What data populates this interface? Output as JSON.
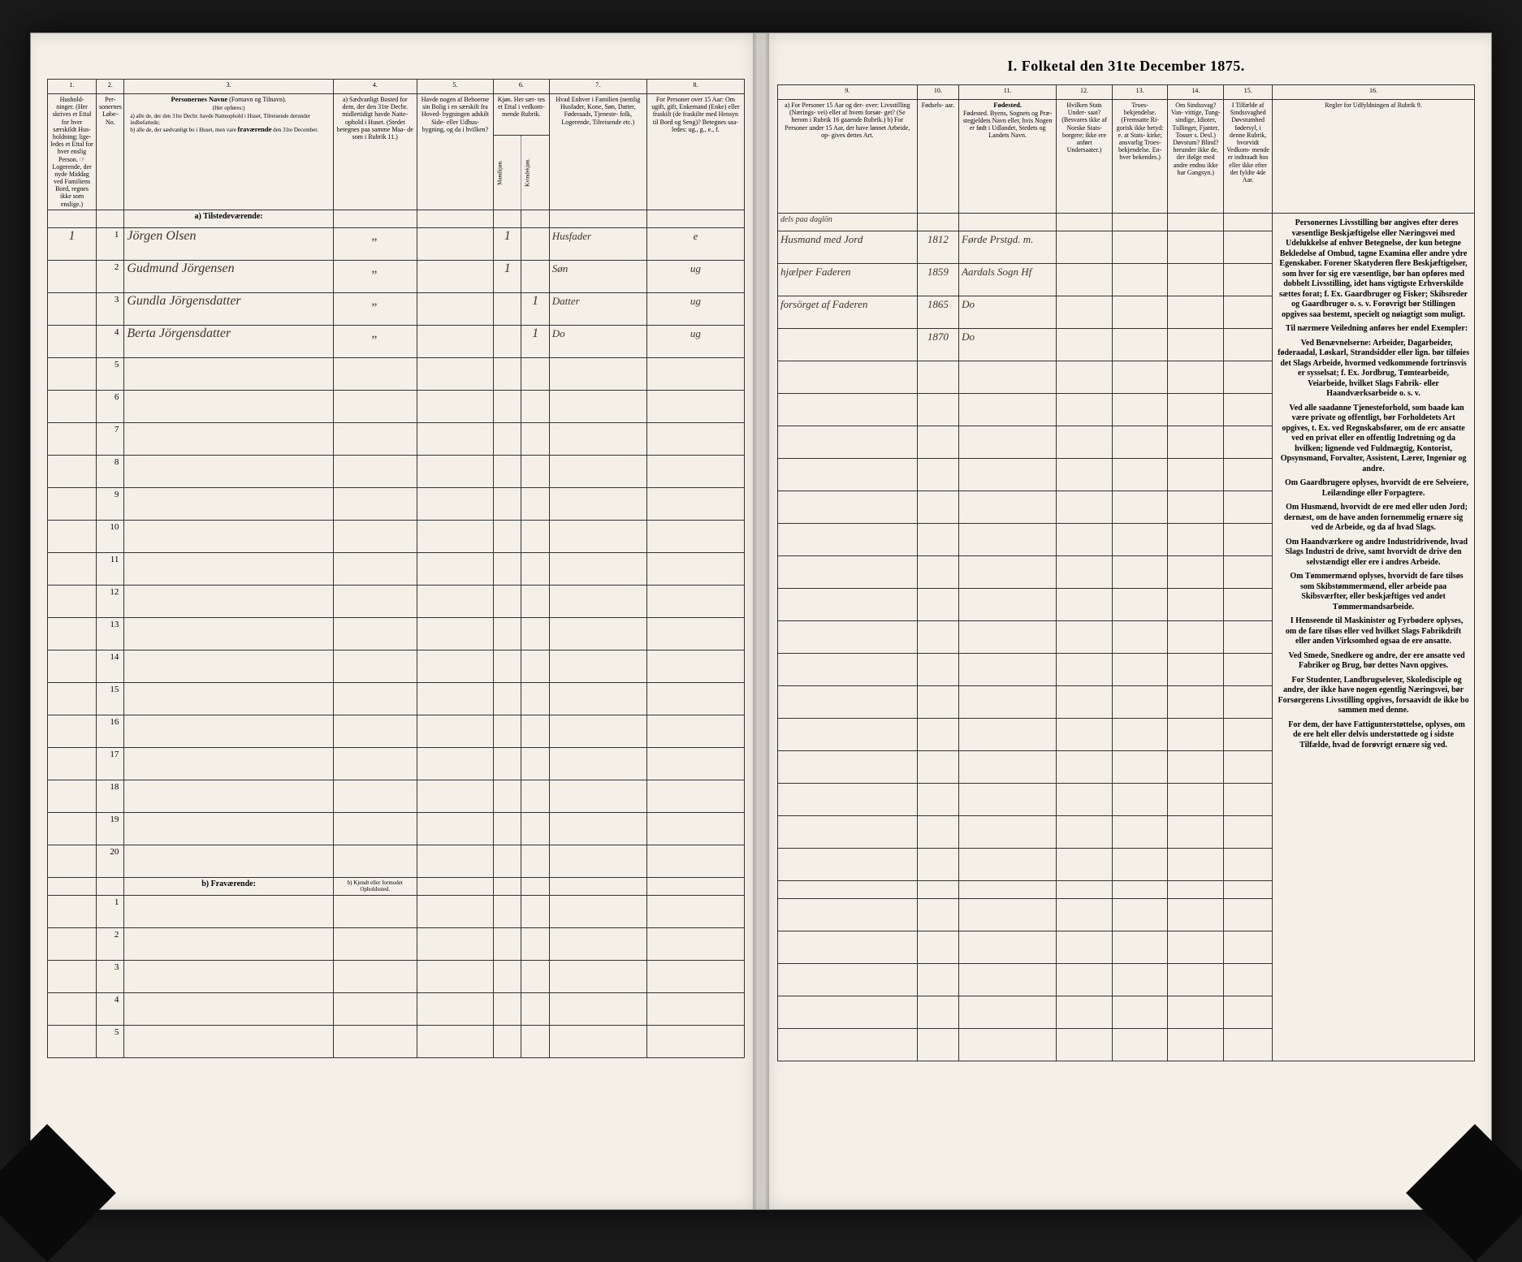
{
  "title": "I. Folketal den 31te December 1875.",
  "left": {
    "colnums": [
      "1.",
      "2.",
      "3.",
      "4.",
      "5.",
      "6.",
      "7.",
      "8."
    ],
    "heads": {
      "c1": "Hushold-\nninger.\n(Her skrives et\nEttal for hver\nsærskildt Hus-\nholdning; lige-\nledes et Ettal for\nhver enslig\nPerson.\n☞ Logerende, der\nnyde Middag\nved Familiens\nBord, regnes ikke\nsom enslige.)",
      "c2": "Per-sonernes\nLøbe-No.",
      "c3": "Personernes Navne (Fornavn og Tilnavn).\n(Her opføres:)\na) alle de, der den 31te Decbr. havde Natteophold i Huset, Til-reisende derunder indbefattede;\nb) alle de, der sædvanligt bo i Huset, men vare fraværende den 31te December.",
      "c4": "a) Sædvanligt\nBosted for\ndem, der den\n31te Decbr.\nmidlertidigt\nhavde Natte-\nophold i Huset.\n(Stedet betegnes\npaa samme Maa-\nde som i Rubrik 11.)",
      "c5": "Havde nogen\naf Beboerne\nsin Bolig\ni en særskilt\nfra Hoved-\nbygningen\nadskilt Side-\neller Udhus-\nbygning,\nog da i\nhvilken?",
      "c6": "Kjøn.\nHer sæt-\ntes et\nEttal i\nvedkom-\nmende\nRubrik.",
      "c6a": "Mandkjøn.",
      "c6b": "Kvindekjøn.",
      "c7": "Hvad Enhver\ni Familien\n(nemlig Husfader,\nKone, Søn, Datter,\nFøderaads, Tjeneste-\nfolk, Logerende,\nTilreisende etc.)",
      "c8": "For Personer\nover 15 Aar:\nOm ugift, gift,\nEnkemand\n(Enke) eller\nfraskilt (de\nfraskilte med\nHensyn til Bord\nog Seng)?\nBetegnes saa-\nledes:\nug., g., e., f."
    },
    "section_a": "a) Tilstedeværende:",
    "section_b": "b) Fraværende:",
    "section_b_col4": "b) Kjendt eller\nformodet\nOpholdssted.",
    "rows": [
      {
        "hh": "1",
        "no": "1",
        "name": "Jörgen Olsen",
        "c4": "„",
        "c5": "",
        "m": "1",
        "k": "",
        "rel": "Husfader",
        "civ": "e"
      },
      {
        "hh": "",
        "no": "2",
        "name": "Gudmund Jörgensen",
        "c4": "„",
        "c5": "",
        "m": "1",
        "k": "",
        "rel": "Søn",
        "civ": "ug"
      },
      {
        "hh": "",
        "no": "3",
        "name": "Gundla Jörgensdatter",
        "c4": "„",
        "c5": "",
        "m": "",
        "k": "1",
        "rel": "Datter",
        "civ": "ug"
      },
      {
        "hh": "",
        "no": "4",
        "name": "Berta Jörgensdatter",
        "c4": "„",
        "c5": "",
        "m": "",
        "k": "1",
        "rel": "Do",
        "civ": "ug"
      }
    ],
    "empty_a": [
      "5",
      "6",
      "7",
      "8",
      "9",
      "10",
      "11",
      "12",
      "13",
      "14",
      "15",
      "16",
      "17",
      "18",
      "19",
      "20"
    ],
    "empty_b": [
      "1",
      "2",
      "3",
      "4",
      "5"
    ]
  },
  "right": {
    "colnums": [
      "9.",
      "10.",
      "11.",
      "12.",
      "13.",
      "14.",
      "15.",
      "16."
    ],
    "heads": {
      "c9": "a) For Personer 15 Aar og der-\nover: Livsstilling (Nærings-\nvei) eller af hvem forsør-\nget? (Se herom i Rubrik 16\ngaaende Rubrik.)\nb) For Personer under 15 Aar,\nder have lønnet Arbeide, op-\ngives dettes Art.",
      "c10": "Fødsels-\naar.",
      "c11": "Fødested.\nByens, Sognets og Præ-\nstegjeldets Navn eller, hvis\nNogen er født i Udlandet,\nStedets og Landets\nNavn.",
      "c12": "Hvilken\nStats Under-\nsaat?\n(Besvares ikke af\nNorske Stats-\nborgere; ikke ere\nanført\nUndersaater.)",
      "c13": "Troes-\nbekjendelse.\n(Fremsatte Ri-\ngorisk ikke betyd:\ne. at Stats-\nkirke;\nansvarlig Troes-\nbekjendelse. En-\nhver bekendes.)",
      "c14": "Om\nSindssvag? Van-\nvittige, Tung-\nsindige, Idioter,\nTullinger,\nFjanter,\nTosser s. Desl.)\nDøvstum?\nBlind? herunder\nikke de, der\nifølge med andre\nendnu\nikke har\nGangsyn.)",
      "c15": "I Tilfælde\naf Sindssvaghed\nDøvstumhed\nfødersyl,\ni denne\nRubrik,\nhvorvidt\nVedkom-\nmende er\nindtraadt\nhos eller\nikke\nefter det\nfyldte\n4de Aar.",
      "c16": "Regler for Udfyldningen\naf\nRubrik 9."
    },
    "note": "dels paa daglön",
    "rows": [
      {
        "c9": "Husmand med Jord",
        "c10": "1812",
        "c11": "Førde Prstgd. m.",
        "c12": "",
        "c13": "",
        "c14": "",
        "c15": ""
      },
      {
        "c9": "hjælper Faderen",
        "c10": "1859",
        "c11": "Aardals Sogn Hf",
        "c12": "",
        "c13": "",
        "c14": "",
        "c15": ""
      },
      {
        "c9": "forsörget af Faderen",
        "c10": "1865",
        "c11": "Do",
        "c12": "",
        "c13": "",
        "c14": "",
        "c15": ""
      },
      {
        "c9": "",
        "c10": "1870",
        "c11": "Do",
        "c12": "",
        "c13": "",
        "c14": "",
        "c15": ""
      }
    ],
    "rules": [
      "Personernes Livsstilling bør angives efter deres væsentlige Beskjæftigelse eller Næringsvei med Udelukkelse af enhver Betegnelse, der kun betegne Bekledelse af Ombud, tagne Examina eller andre ydre Egenskaber. Forener Skatyderen flere Beskjæftigelser, som hver for sig ere væsentlige, bør han opføres med dobbelt Livsstilling, idet hans vigtigste Erhverskilde sættes forat; f. Ex. Gaardbruger og Fisker; Skibsreder og Gaardbruger o. s. v. Forøvrigt bør Stillingen opgives saa bestemt, specielt og nøiagtigt som muligt.",
      "Til nærmere Veiledning anføres her endel Exempler:",
      "Ved Benævnelserne: Arbeider, Dagarbeider, føderaadal, Løskarl, Strandsidder eller lign. bør tilføies det Slags Arbeide, hvormed vedkommende fortrinsvis er sysselsat; f. Ex. Jordbrug, Tømtearbeide, Veiarbeide, hvilket Slags Fabrik- eller Haandværksarbeide o. s. v.",
      "Ved alle saadanne Tjenesteforhold, som baade kan være private og offentligt, bør Forholdetets Art opgives, t. Ex. ved Regnskabsfører, om de erc ansatte ved en privat eller en offentlig Indretning og da hvilken; lignende ved Fuldmægtig, Kontorist, Opsynsmand, Forvalter, Assistent, Lærer, Ingeniør og andre.",
      "Om Gaardbrugere oplyses, hvorvidt de ere Selveiere, Leilændinge eller Forpagtere.",
      "Om Husmænd, hvorvidt de ere med eller uden Jord; dernæst, om de have anden fornemmelig ernære sig ved de Arbeide, og da af hvad Slags.",
      "Om Haandværkere og andre Industridrivende, hvad Slags Industri de drive, samt hvorvidt de drive den selvstændigt eller ere i andres Arbeide.",
      "Om Tømmermænd oplyses, hvorvidt de fare tilsøs som Skibstømmermænd, eller arbeide paa Skibsværfter, eller beskjæftiges ved andet Tømmermandsarbeide.",
      "I Henseende til Maskinister og Fyrbødere oplyses, om de fare tilsøs eller ved hvilket Slags Fabrikdrift eller anden Virksomhed ogsaa de ere ansatte.",
      "Ved Smede, Snedkere og andre, der ere ansatte ved Fabriker og Brug, bør dettes Navn opgives.",
      "For Studenter, Landbrugselever, Skoledisciple og andre, der ikke have nogen egentlig Næringsvei, bør Forsørgerens Livsstilling opgives, forsaavidt de ikke bo sammen med denne.",
      "For dem, der have Fattigunterstøttelse, oplyses, om de ere helt eller delvis understøttede og i sidste Tilfælde, hvad de forøvrigt ernære sig ved."
    ]
  }
}
